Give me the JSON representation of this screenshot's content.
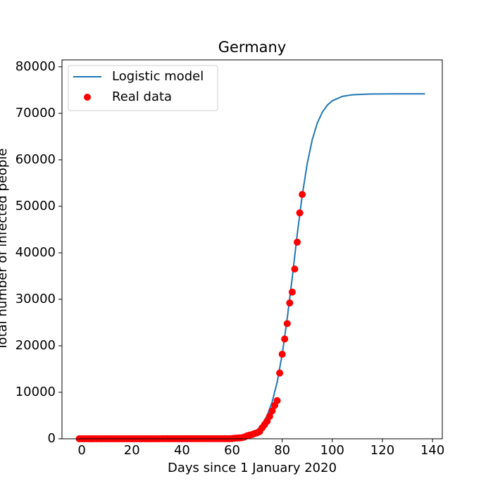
{
  "chart_data": {
    "type": "line",
    "title": "Germany",
    "x_label": "Days since 1 January 2020",
    "y_label": "Total number of infected people",
    "xlim": [
      -7.9,
      143.9
    ],
    "xticks": [
      0,
      20,
      40,
      60,
      80,
      100,
      120,
      140
    ],
    "ylim": [
      0,
      81500
    ],
    "yticks": [
      0,
      10000,
      20000,
      30000,
      40000,
      50000,
      60000,
      70000,
      80000
    ],
    "grid": false,
    "legend": "upper left",
    "series": [
      {
        "name": "Logistic model",
        "type": "line",
        "color": "#1f77b4",
        "x": [
          -1,
          20,
          40,
          55,
          60,
          64,
          68,
          70,
          72,
          74,
          76,
          78,
          80,
          82,
          84,
          86,
          88,
          90,
          92,
          94,
          96,
          98,
          100,
          104,
          108,
          115,
          125,
          137
        ],
        "values": [
          0,
          0,
          1,
          47,
          162,
          439,
          1180,
          1923,
          3120,
          5010,
          7915,
          12210,
          18180,
          25875,
          34620,
          43985,
          52370,
          59225,
          64330,
          67885,
          70240,
          71750,
          72690,
          73640,
          73990,
          74160,
          74200,
          74200
        ]
      },
      {
        "name": "Real data",
        "type": "scatter",
        "color": "#ff0000",
        "x": [
          -1,
          0,
          1,
          2,
          3,
          4,
          5,
          6,
          7,
          8,
          9,
          10,
          11,
          12,
          13,
          14,
          15,
          16,
          17,
          18,
          19,
          20,
          21,
          22,
          23,
          24,
          25,
          26,
          27,
          28,
          29,
          30,
          31,
          32,
          33,
          34,
          35,
          36,
          37,
          38,
          39,
          40,
          41,
          42,
          43,
          44,
          45,
          46,
          47,
          48,
          49,
          50,
          51,
          52,
          53,
          54,
          55,
          56,
          57,
          58,
          59,
          60,
          61,
          62,
          63,
          64,
          65,
          66,
          67,
          68,
          69,
          70,
          71,
          72,
          73,
          74,
          75,
          76,
          77,
          78,
          79,
          80,
          81,
          82,
          83,
          84,
          85,
          86,
          87,
          88
        ],
        "values": [
          0,
          0,
          0,
          0,
          0,
          0,
          0,
          0,
          0,
          0,
          0,
          0,
          0,
          0,
          0,
          0,
          0,
          0,
          0,
          0,
          0,
          0,
          0,
          0,
          0,
          0,
          0,
          1,
          4,
          4,
          4,
          5,
          8,
          10,
          12,
          12,
          12,
          12,
          13,
          13,
          14,
          14,
          16,
          16,
          16,
          16,
          16,
          16,
          16,
          16,
          16,
          16,
          16,
          16,
          16,
          16,
          16,
          16,
          18,
          21,
          26,
          66,
          117,
          150,
          188,
          240,
          400,
          639,
          795,
          902,
          1139,
          1296,
          1567,
          2369,
          3062,
          3795,
          4838,
          6012,
          7156,
          8198,
          14138,
          18187,
          21463,
          24774,
          29212,
          31554,
          36508,
          42288,
          48582,
          52547
        ]
      }
    ]
  }
}
